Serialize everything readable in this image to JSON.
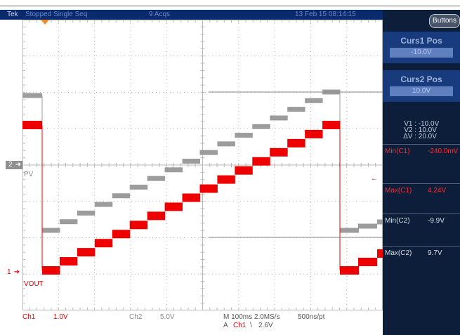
{
  "header": {
    "brand": "Tek",
    "status": "Stopped  Single Seq",
    "acqs": "9 Acqs",
    "datetime": "13 Feb 15 08:14:15"
  },
  "side_menu": {
    "buttons_label": "Buttons",
    "curs1": {
      "title": "Curs1 Pos",
      "value": "-10.0V"
    },
    "curs2": {
      "title": "Curs2 Pos",
      "value": "10.0V"
    },
    "readout": [
      {
        "label": "V1 :",
        "value": "-10.0V"
      },
      {
        "label": "V2 :",
        "value": "10.0V"
      },
      {
        "label": "ΔV :",
        "value": "20.0V"
      }
    ],
    "measurements": [
      {
        "label": "Min(C1)",
        "value": "-240.0mV",
        "color": "#ff2a2a"
      },
      {
        "label": "Max(C1)",
        "value": "4.24V",
        "color": "#ff2a2a"
      },
      {
        "label": "Min(C2)",
        "value": "-9.9V",
        "color": "#d8dde6"
      },
      {
        "label": "Max(C2)",
        "value": "9.7V",
        "color": "#d8dde6"
      }
    ]
  },
  "markers": {
    "ch2": "2",
    "ch1": "1",
    "pv": "PV",
    "vout": "VOUT"
  },
  "bottom_bar": {
    "ch1": "Ch1",
    "ch1_scale": "1.0V",
    "ch2": "Ch2",
    "ch2_scale": "5.0V",
    "timebase": "M 100ms 2.0MS/s",
    "resolution": "500ns/pt",
    "trigger_prefix": "A",
    "trigger_channel": "Ch1",
    "trigger_symbol": "\\",
    "trigger_level": "2.6V"
  },
  "colors": {
    "ch1": "#ee0000",
    "ch2": "#9c9c9c",
    "grid": "#b8b8b8",
    "menu_bg": "#0c1e3a"
  }
}
